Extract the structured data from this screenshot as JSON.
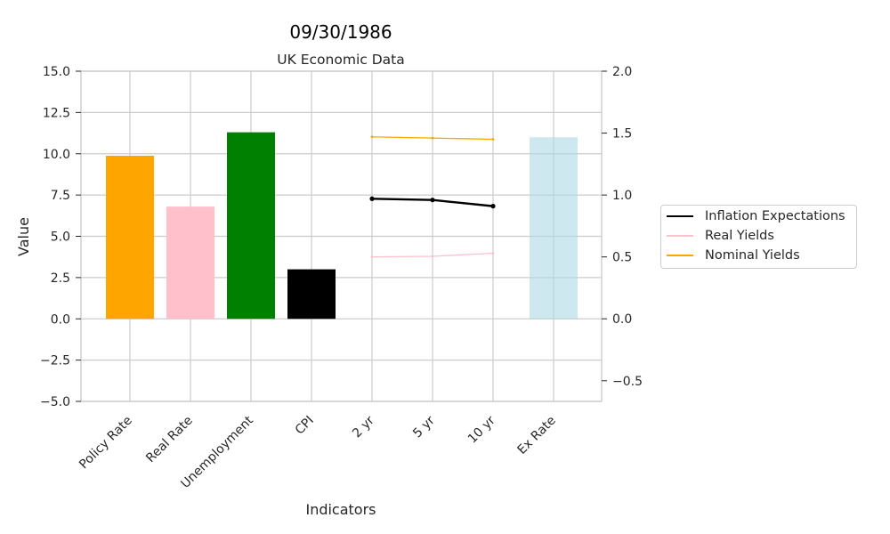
{
  "chart_data": {
    "type": "bar",
    "title": "09/30/1986",
    "subtitle": "UK Economic Data",
    "xlabel": "Indicators",
    "ylabel": "Value",
    "categories": [
      "Policy Rate",
      "Real Rate",
      "Unemployment",
      "CPI",
      "2 yr",
      "5 yr",
      "10 yr",
      "Ex Rate"
    ],
    "bars": {
      "values": [
        9.88,
        6.8,
        11.3,
        3.0,
        0,
        0,
        0,
        11.0
      ],
      "colors": [
        "#FFA500",
        "#FFC0CB",
        "#008000",
        "#000000",
        "#ffffff",
        "#ffffff",
        "#ffffff",
        "#ADD8E6"
      ]
    },
    "ylim": [
      -5,
      15
    ],
    "yticks": [
      -5.0,
      -2.5,
      0.0,
      2.5,
      5.0,
      7.5,
      10.0,
      12.5,
      15.0
    ],
    "ytick_labels": [
      "−5.0",
      "−2.5",
      "0.0",
      "2.5",
      "5.0",
      "7.5",
      "10.0",
      "12.5",
      "15.0"
    ],
    "y2lim": [
      -0.667,
      2.0
    ],
    "y2ticks": [
      -0.5,
      0.0,
      0.5,
      1.0,
      1.5,
      2.0
    ],
    "y2tick_labels": [
      "−0.5",
      "0.0",
      "0.5",
      "1.0",
      "1.5",
      "2.0"
    ],
    "series": [
      {
        "name": "Inflation Expectations",
        "axis": "right",
        "color": "#000000",
        "x": [
          "2 yr",
          "5 yr",
          "10 yr"
        ],
        "values": [
          0.97,
          0.96,
          0.91
        ]
      },
      {
        "name": "Real Yields",
        "axis": "right",
        "color": "#FFC0CB",
        "x": [
          "2 yr",
          "5 yr",
          "10 yr"
        ],
        "values": [
          0.5,
          0.505,
          0.53
        ]
      },
      {
        "name": "Nominal Yields",
        "axis": "right",
        "color": "#FFA500",
        "x": [
          "2 yr",
          "5 yr",
          "10 yr"
        ],
        "values": [
          1.47,
          1.46,
          1.45
        ]
      }
    ],
    "grid": true,
    "legend_position": "outside right"
  }
}
